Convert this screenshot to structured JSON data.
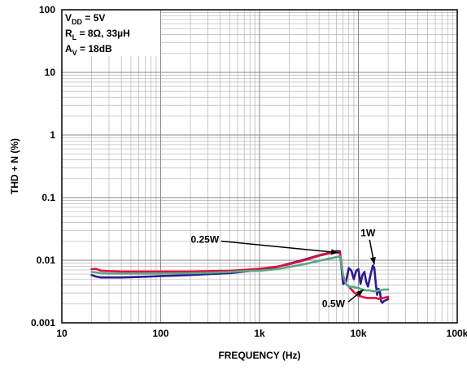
{
  "chart_data": {
    "type": "line",
    "x_scale": "log",
    "y_scale": "log",
    "xlim": [
      10,
      100000
    ],
    "ylim": [
      0.001,
      100
    ],
    "xlabel": "FREQUENCY (Hz)",
    "ylabel": "THD + N (%)",
    "x_ticks": [
      {
        "value": 10,
        "label": "10"
      },
      {
        "value": 100,
        "label": "100"
      },
      {
        "value": 1000,
        "label": "1k"
      },
      {
        "value": 10000,
        "label": "10k"
      },
      {
        "value": 100000,
        "label": "100k"
      }
    ],
    "y_ticks": [
      {
        "value": 0.001,
        "label": "0.001"
      },
      {
        "value": 0.01,
        "label": "0.01"
      },
      {
        "value": 0.1,
        "label": "0.1"
      },
      {
        "value": 1,
        "label": "1"
      },
      {
        "value": 10,
        "label": "10"
      },
      {
        "value": 100,
        "label": "100"
      }
    ],
    "grid": true,
    "conditions": {
      "vdd": {
        "main": "V",
        "sub": "DD",
        "rest": " = 5V"
      },
      "rl": {
        "main": "R",
        "sub": "L",
        "rest": " = 8Ω, 33µH"
      },
      "av": {
        "main": "A",
        "sub": "V",
        "rest": " = 18dB"
      }
    },
    "series": [
      {
        "name": "1W",
        "color": "#2e1a8c",
        "x": [
          20,
          22,
          25,
          30,
          40,
          60,
          80,
          100,
          150,
          200,
          300,
          500,
          700,
          1000,
          1500,
          2000,
          3000,
          4000,
          5000,
          6000,
          6500,
          7000,
          7500,
          8000,
          8500,
          9000,
          9500,
          10000,
          10500,
          11000,
          11500,
          12000,
          12500,
          13000,
          13500,
          14000,
          14500,
          15000,
          15500,
          16000,
          16500,
          17000,
          17500,
          18000,
          19000,
          20000
        ],
        "y": [
          0.0058,
          0.0055,
          0.0053,
          0.0053,
          0.0053,
          0.0054,
          0.0055,
          0.0056,
          0.0057,
          0.0058,
          0.006,
          0.0062,
          0.0066,
          0.007,
          0.0078,
          0.0088,
          0.0105,
          0.012,
          0.013,
          0.014,
          0.0138,
          0.0042,
          0.0045,
          0.0075,
          0.0068,
          0.005,
          0.0068,
          0.0072,
          0.0042,
          0.0058,
          0.0065,
          0.0045,
          0.0038,
          0.005,
          0.0065,
          0.0082,
          0.0075,
          0.0042,
          0.0028,
          0.0035,
          0.0032,
          0.0022,
          0.0021,
          0.0022,
          0.0023,
          0.0024
        ]
      },
      {
        "name": "0.25W",
        "color": "#e0103c",
        "x": [
          20,
          22,
          25,
          30,
          40,
          60,
          80,
          100,
          150,
          200,
          300,
          500,
          700,
          1000,
          1500,
          2000,
          3000,
          4000,
          5000,
          6000,
          6500,
          7000,
          7500,
          8000,
          9000,
          10000,
          11000,
          12000,
          13000,
          14000,
          15000,
          16000,
          18000,
          20000
        ],
        "y": [
          0.0072,
          0.0073,
          0.0068,
          0.0067,
          0.0066,
          0.0066,
          0.0066,
          0.0066,
          0.0066,
          0.0066,
          0.0067,
          0.0068,
          0.007,
          0.0073,
          0.0079,
          0.0086,
          0.0102,
          0.0118,
          0.0128,
          0.0135,
          0.013,
          0.0055,
          0.0042,
          0.0038,
          0.0031,
          0.0027,
          0.0026,
          0.0025,
          0.0025,
          0.0025,
          0.0025,
          0.0024,
          0.0025,
          0.0026
        ]
      },
      {
        "name": "0.5W",
        "color": "#58a886",
        "x": [
          20,
          22,
          25,
          30,
          40,
          60,
          80,
          100,
          150,
          200,
          300,
          500,
          700,
          1000,
          1500,
          2000,
          3000,
          4000,
          5000,
          6000,
          6500,
          7000,
          7500,
          8000,
          9000,
          10000,
          11000,
          12000,
          13000,
          14000,
          15000,
          16000,
          18000,
          20000
        ],
        "y": [
          0.0065,
          0.0064,
          0.0062,
          0.0061,
          0.0061,
          0.0061,
          0.0061,
          0.0061,
          0.0062,
          0.0062,
          0.0063,
          0.0065,
          0.0067,
          0.0068,
          0.0072,
          0.0078,
          0.0088,
          0.0098,
          0.0106,
          0.0112,
          0.0115,
          0.0058,
          0.0042,
          0.0038,
          0.0037,
          0.0036,
          0.0034,
          0.0033,
          0.0033,
          0.0032,
          0.0032,
          0.0033,
          0.0034,
          0.0034
        ]
      }
    ],
    "annotations": [
      {
        "text": "0.25W",
        "target_series": "0.25W",
        "at": [
          6300,
          0.0132
        ],
        "label_at": [
          280,
          0.019
        ]
      },
      {
        "text": "1W",
        "target_series": "1W",
        "at": [
          14500,
          0.0085
        ],
        "label_at": [
          12500,
          0.024
        ]
      },
      {
        "text": "0.5W",
        "target_series": "0.5W",
        "at": [
          11300,
          0.0034
        ],
        "label_at": [
          5600,
          0.0018
        ]
      }
    ]
  }
}
